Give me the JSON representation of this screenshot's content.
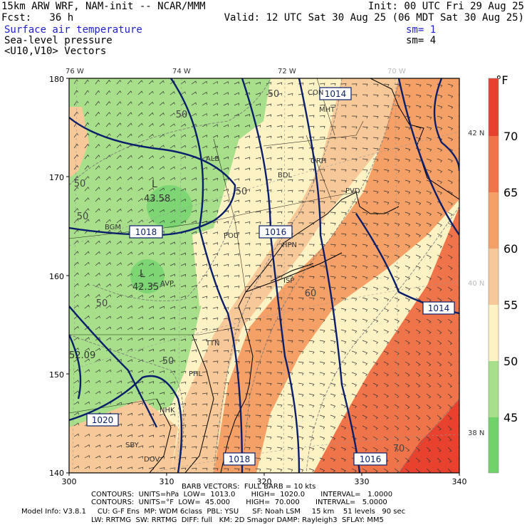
{
  "header": {
    "model": "15km ARW WRF, NAM-init -- NCAR/MMM",
    "init": "Init: 00 UTC Fri 29 Aug 25",
    "fcst": "Fcst:   36 h",
    "valid": "Valid: 12 UTC Sat 30 Aug 25 (06 MDT Sat 30 Aug 25)",
    "field1": "Surface air temperature",
    "sm1": "sm= 1",
    "field2": "Sea-level pressure",
    "sm2": "sm= 4",
    "field3": "<U10,V10> Vectors"
  },
  "map": {
    "lon_labels": [
      "76 W",
      "74 W",
      "72 W",
      "70 W"
    ],
    "lat_labels": [
      "42 N",
      "40 N",
      "38 N"
    ],
    "y_ticks": [
      "180",
      "170",
      "160",
      "150",
      "140"
    ],
    "x_ticks": [
      "300",
      "310",
      "320",
      "330",
      "340"
    ],
    "isotherm_labels": [
      "50",
      "50",
      "50",
      "50",
      "50",
      "50",
      "60",
      "70"
    ],
    "isobar_labels": [
      "1014",
      "1018",
      "1016",
      "1014",
      "1020",
      "1018",
      "1016"
    ],
    "minima": [
      "43.58",
      "42.35",
      "52.09"
    ],
    "minima_marks": [
      "L",
      "L"
    ],
    "stations": [
      "CON",
      "MHT",
      "ORH",
      "ALB",
      "BDL",
      "PVD",
      "BGM",
      "POU",
      "HPN",
      "AVP",
      "ISP",
      "TTN",
      "PHL",
      "SBY",
      "DOV",
      "NHK"
    ]
  },
  "colorbar": {
    "unit": "°F",
    "labels": [
      "70",
      "65",
      "60",
      "55",
      "50",
      "45"
    ],
    "colors": [
      "#e8412e",
      "#f0744a",
      "#f5a066",
      "#f7c999",
      "#fdf2c4",
      "#a8df8a",
      "#6fd36a"
    ]
  },
  "footer": {
    "barb": "BARB VECTORS:  FULL BARB = 10 kts",
    "contours1": "CONTOURS:  UNITS=hPa  LOW=  1013.0       HIGH=  1020.0       INTERVAL=   1.0000",
    "contours2": "CONTOURS:  UNITS=°F  LOW=  45.000       HIGH=  70.000       INTERVAL=   5.0000",
    "model1": "Model Info: V3.8.1     CU: G-F Ens  MP: WDM 6class  PBL: YSU      SF: Noah LSM     15 km    51 levels   90 sec",
    "model2": "LW: RRTMG  SW: RRTMG  DIFF: full   KM: 2D Smagor DAMP: Rayleigh3  SFLAY: MM5"
  }
}
